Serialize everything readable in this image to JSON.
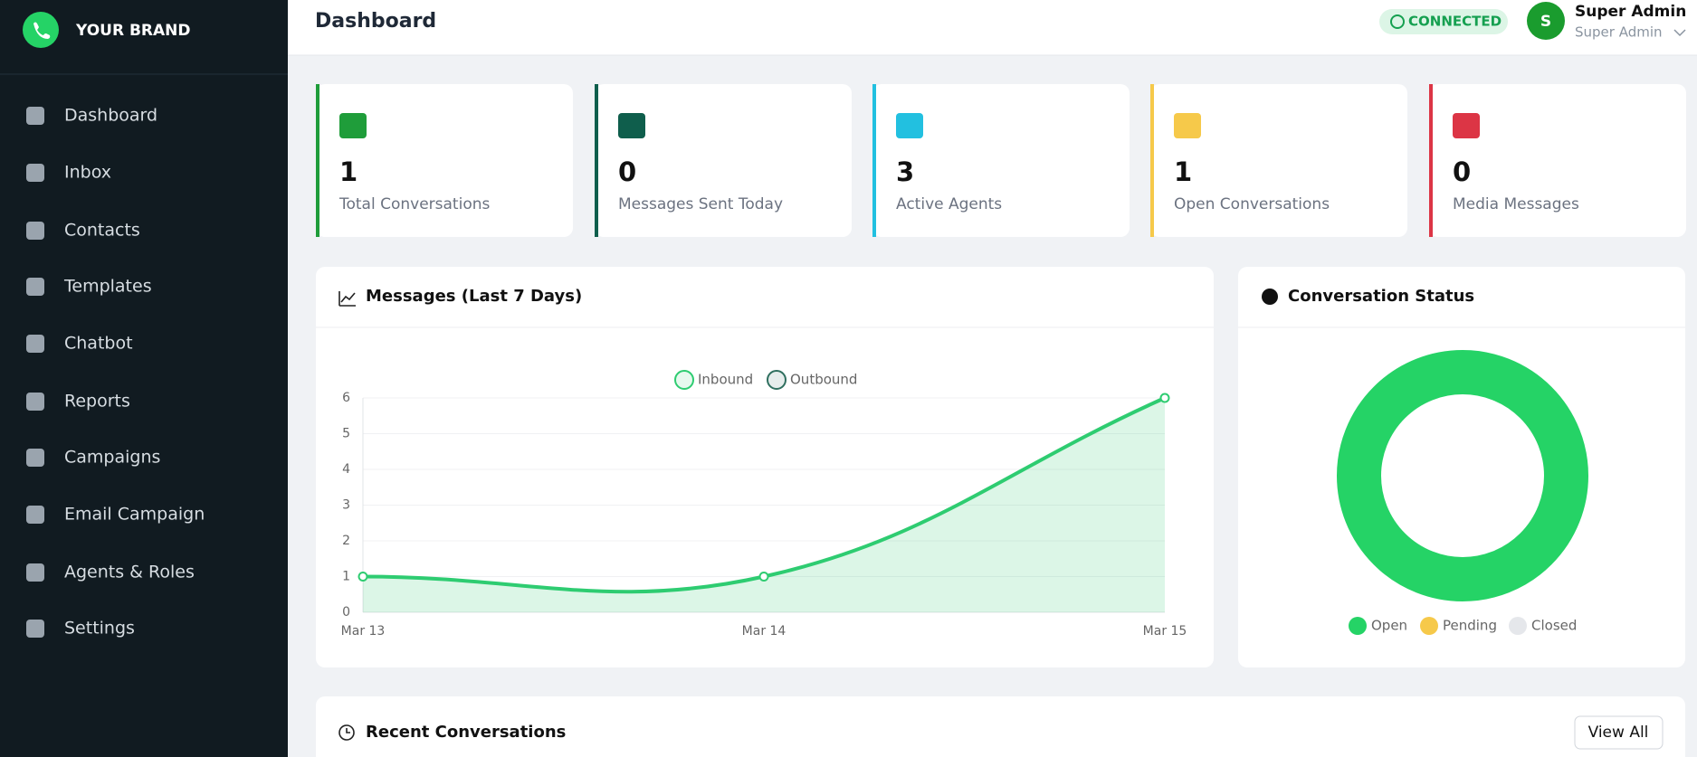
{
  "sidebar": {
    "brand": "YOUR BRAND",
    "nav": [
      "Dashboard",
      "Inbox",
      "Contacts",
      "Templates",
      "Chatbot",
      "Reports",
      "Campaigns",
      "Email Campaign",
      "Agents & Roles",
      "Settings"
    ]
  },
  "header": {
    "title": "Dashboard",
    "status": "CONNECTED",
    "avatar": "S",
    "user_name": "Super Admin",
    "user_role": "Super Admin"
  },
  "stats": [
    {
      "value": 1,
      "label": "Total Conversations",
      "color": "#1f9d3a"
    },
    {
      "value": 0,
      "label": "Messages Sent Today",
      "color": "#0f5e4c"
    },
    {
      "value": 3,
      "label": "Active Agents",
      "color": "#22c0e0"
    },
    {
      "value": 1,
      "label": "Open Conversations",
      "color": "#f6c94a"
    },
    {
      "value": 0,
      "label": "Media Messages",
      "color": "#dc3545"
    }
  ],
  "chart_data": [
    {
      "type": "line",
      "title": "Messages (Last 7 Days)",
      "categories": [
        "Mar 13",
        "Mar 14",
        "Mar 15"
      ],
      "series": [
        {
          "name": "Inbound",
          "color": "#2ecc71",
          "values": [
            1,
            1,
            6
          ]
        },
        {
          "name": "Outbound",
          "color": "#2f6f5f",
          "values": [
            null,
            null,
            null
          ]
        }
      ],
      "ylim": [
        0,
        6
      ],
      "yticks": [
        0,
        1,
        2,
        3,
        4,
        5,
        6
      ],
      "grid": true
    },
    {
      "type": "pie",
      "title": "Conversation Status",
      "categories": [
        "Open",
        "Pending",
        "Closed"
      ],
      "values": [
        1,
        0,
        0
      ],
      "colors": [
        "#25d366",
        "#f6c94a",
        "#e5e7eb"
      ],
      "donut": true
    }
  ],
  "recent": {
    "title": "Recent Conversations",
    "action": "View All"
  }
}
